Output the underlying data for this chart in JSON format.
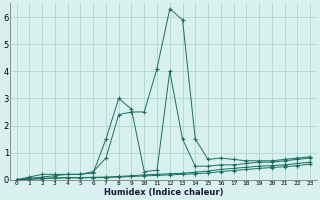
{
  "xlabel": "Humidex (Indice chaleur)",
  "xlim": [
    -0.5,
    23.5
  ],
  "ylim": [
    0,
    6.5
  ],
  "yticks": [
    0,
    1,
    2,
    3,
    4,
    5,
    6
  ],
  "xticks": [
    0,
    1,
    2,
    3,
    4,
    5,
    6,
    7,
    8,
    9,
    10,
    11,
    12,
    13,
    14,
    15,
    16,
    17,
    18,
    19,
    20,
    21,
    22,
    23
  ],
  "bg_color": "#d8f0ee",
  "grid_color": "#aad4cc",
  "line_color": "#1a6e60",
  "lines": [
    [
      0.0,
      0.1,
      0.2,
      0.2,
      0.2,
      0.2,
      0.3,
      0.8,
      2.4,
      2.5,
      2.5,
      4.1,
      6.3,
      5.9,
      1.5,
      0.75,
      0.8,
      0.75,
      0.7,
      0.7,
      0.7,
      0.75,
      0.8,
      0.85
    ],
    [
      0.0,
      0.05,
      0.1,
      0.15,
      0.2,
      0.2,
      0.25,
      1.5,
      3.0,
      2.6,
      0.3,
      0.35,
      4.0,
      1.5,
      0.5,
      0.5,
      0.55,
      0.55,
      0.6,
      0.65,
      0.65,
      0.7,
      0.75,
      0.8
    ],
    [
      0.0,
      0.02,
      0.05,
      0.07,
      0.08,
      0.08,
      0.09,
      0.1,
      0.12,
      0.15,
      0.18,
      0.2,
      0.22,
      0.24,
      0.28,
      0.32,
      0.38,
      0.42,
      0.46,
      0.5,
      0.52,
      0.55,
      0.6,
      0.65
    ],
    [
      0.0,
      0.02,
      0.04,
      0.06,
      0.07,
      0.07,
      0.08,
      0.08,
      0.1,
      0.12,
      0.14,
      0.16,
      0.18,
      0.2,
      0.22,
      0.25,
      0.3,
      0.34,
      0.38,
      0.42,
      0.45,
      0.48,
      0.52,
      0.58
    ]
  ]
}
